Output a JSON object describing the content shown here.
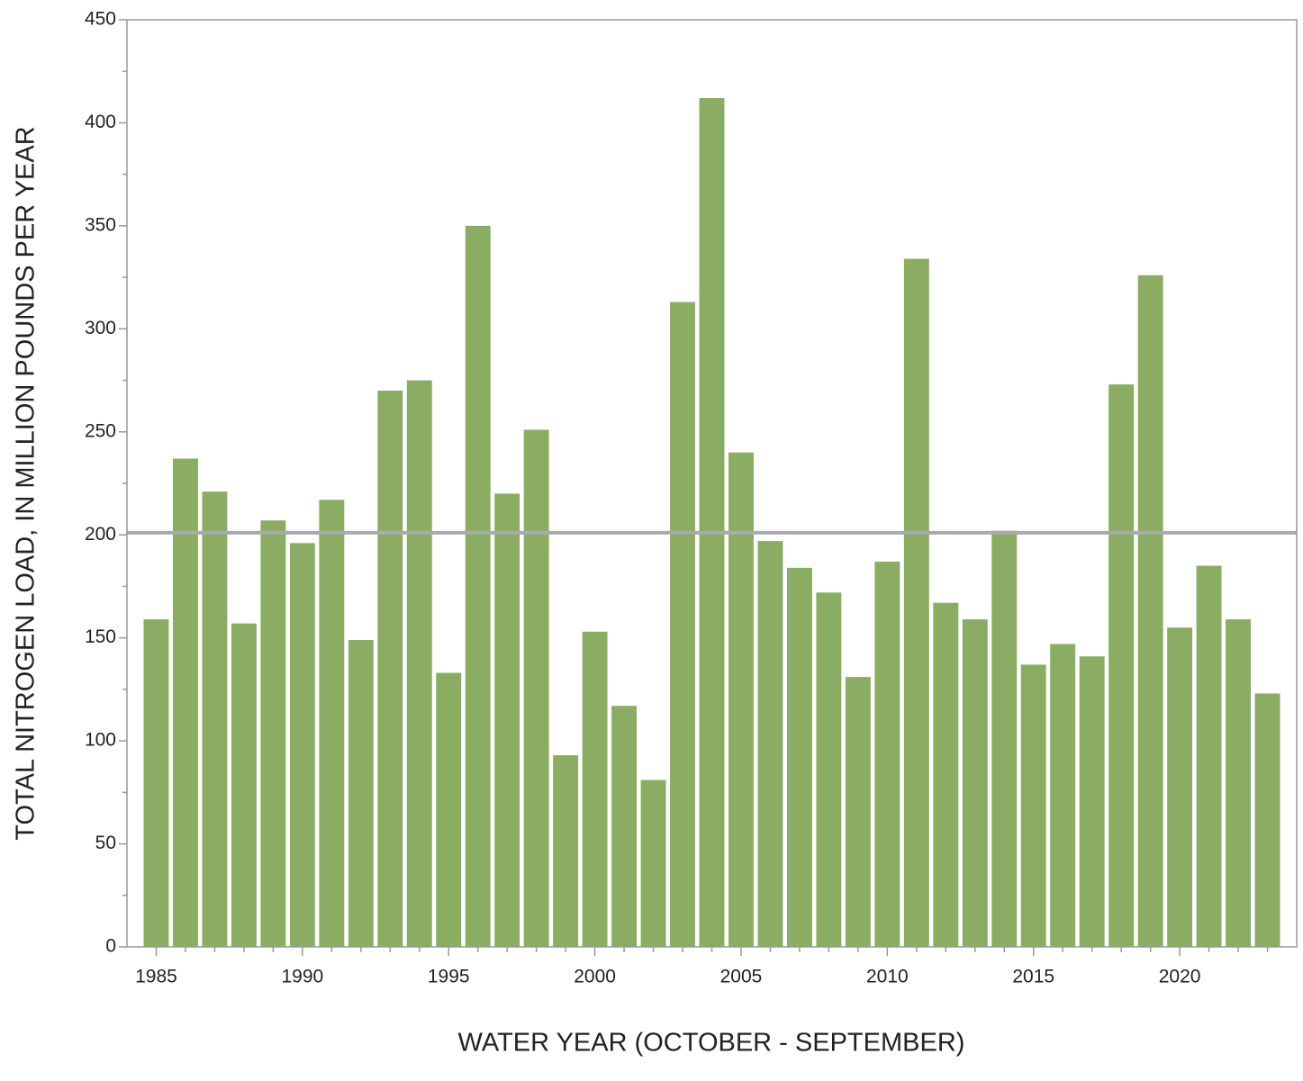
{
  "chart_data": {
    "type": "bar",
    "x_label": "WATER YEAR (OCTOBER - SEPTEMBER)",
    "y_label": "TOTAL NITROGEN LOAD, IN MILLION POUNDS PER YEAR",
    "x": [
      1985,
      1986,
      1987,
      1988,
      1989,
      1990,
      1991,
      1992,
      1993,
      1994,
      1995,
      1996,
      1997,
      1998,
      1999,
      2000,
      2001,
      2002,
      2003,
      2004,
      2005,
      2006,
      2007,
      2008,
      2009,
      2010,
      2011,
      2012,
      2013,
      2014,
      2015,
      2016,
      2017,
      2018,
      2019,
      2020,
      2021,
      2022,
      2023
    ],
    "values": [
      159,
      237,
      221,
      157,
      207,
      196,
      217,
      149,
      270,
      275,
      133,
      350,
      220,
      251,
      93,
      153,
      117,
      81,
      313,
      412,
      240,
      197,
      184,
      172,
      131,
      187,
      334,
      167,
      159,
      202,
      137,
      147,
      141,
      273,
      326,
      155,
      185,
      159,
      123
    ],
    "color": "#8aad63",
    "reference_line": 201,
    "reference_color": "#aaaaaa",
    "xlim": [
      1984,
      2024
    ],
    "ylim": [
      0,
      450
    ],
    "xticks": [
      1985,
      1990,
      1995,
      2000,
      2005,
      2010,
      2015,
      2020
    ],
    "yticks": [
      0,
      50,
      100,
      150,
      200,
      250,
      300,
      350,
      400,
      450
    ],
    "xticks_minor": [
      1986,
      1987,
      1988,
      1989,
      1991,
      1992,
      1993,
      1994,
      1996,
      1997,
      1998,
      1999,
      2001,
      2002,
      2003,
      2004,
      2006,
      2007,
      2008,
      2009,
      2011,
      2012,
      2013,
      2014,
      2016,
      2017,
      2018,
      2019,
      2021,
      2022,
      2023
    ],
    "yticks_minor": [
      25,
      75,
      125,
      175,
      225,
      275,
      325,
      375,
      425
    ]
  }
}
